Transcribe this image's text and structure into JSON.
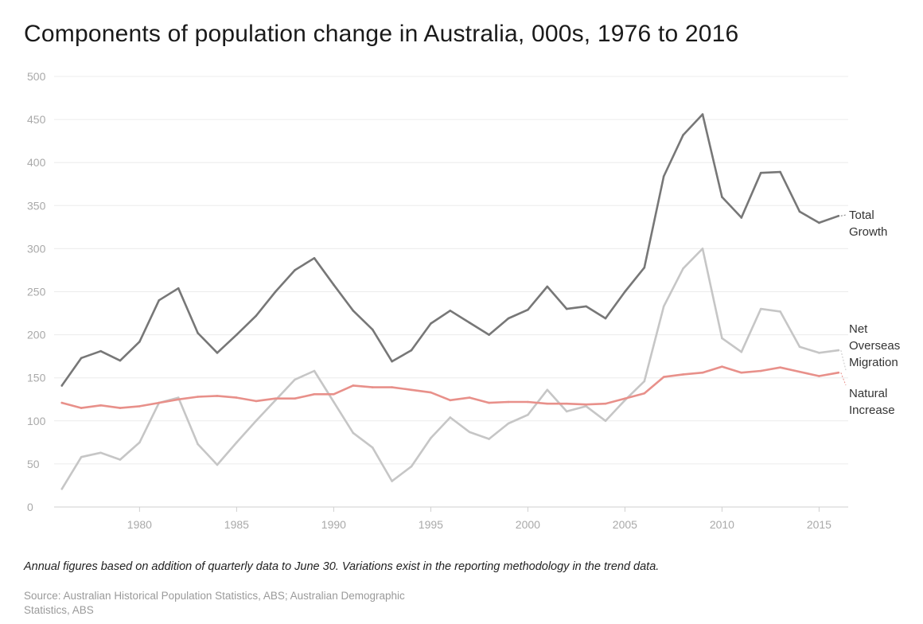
{
  "chart_data": {
    "type": "line",
    "title": "Components of population change in Australia, 000s, 1976 to 2016",
    "xlabel": "",
    "ylabel": "",
    "xlim": [
      1975.6,
      2016.5
    ],
    "ylim": [
      0,
      500
    ],
    "grid": true,
    "legend": "inline labels at line ends",
    "y_ticks": [
      0,
      50,
      100,
      150,
      200,
      250,
      300,
      350,
      400,
      450,
      500
    ],
    "x_ticks": [
      1980,
      1985,
      1990,
      1995,
      2000,
      2005,
      2010,
      2015
    ],
    "x": [
      1976,
      1977,
      1978,
      1979,
      1980,
      1981,
      1982,
      1983,
      1984,
      1985,
      1986,
      1987,
      1988,
      1989,
      1990,
      1991,
      1992,
      1993,
      1994,
      1995,
      1996,
      1997,
      1998,
      1999,
      2000,
      2001,
      2002,
      2003,
      2004,
      2005,
      2006,
      2007,
      2008,
      2009,
      2010,
      2011,
      2012,
      2013,
      2014,
      2015,
      2016
    ],
    "series": [
      {
        "name": "Total Growth",
        "label_lines": [
          "Total",
          "Growth"
        ],
        "color": "#777777",
        "values": [
          141,
          173,
          181,
          170,
          192,
          240,
          254,
          202,
          179,
          200,
          222,
          250,
          275,
          289,
          258,
          228,
          206,
          169,
          182,
          213,
          228,
          214,
          200,
          219,
          229,
          256,
          230,
          233,
          219,
          250,
          278,
          384,
          432,
          456,
          360,
          336,
          388,
          389,
          343,
          330,
          338
        ]
      },
      {
        "name": "Net Overseas Migration",
        "label_lines": [
          "Net",
          "Overseas",
          "Migration"
        ],
        "color": "#c6c6c6",
        "values": [
          21,
          58,
          63,
          55,
          75,
          121,
          127,
          73,
          49,
          75,
          100,
          124,
          148,
          158,
          122,
          86,
          69,
          30,
          47,
          80,
          104,
          87,
          79,
          97,
          107,
          136,
          111,
          117,
          100,
          124,
          146,
          233,
          277,
          300,
          196,
          180,
          230,
          227,
          186,
          179,
          182
        ]
      },
      {
        "name": "Natural Increase",
        "label_lines": [
          "Natural",
          "Increase"
        ],
        "color": "#e8908a",
        "values": [
          121,
          115,
          118,
          115,
          117,
          121,
          125,
          128,
          129,
          127,
          123,
          126,
          126,
          131,
          131,
          141,
          139,
          139,
          136,
          133,
          124,
          127,
          121,
          122,
          122,
          120,
          120,
          119,
          120,
          126,
          132,
          151,
          154,
          156,
          163,
          156,
          158,
          162,
          157,
          152,
          156
        ]
      }
    ]
  },
  "note": "Annual figures based on addition of quarterly data to June 30. Variations exist in the reporting methodology in the trend data.",
  "source": "Source: Australian Historical Population Statistics, ABS; Australian Demographic Statistics, ABS"
}
